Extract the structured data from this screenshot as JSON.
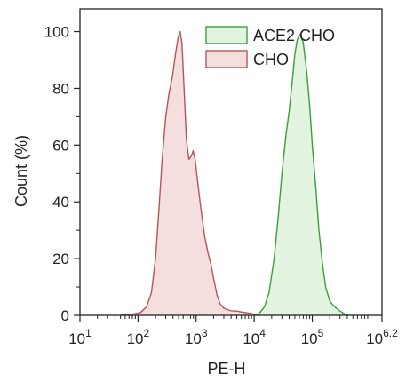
{
  "chart_data": {
    "type": "area",
    "title": "",
    "xlabel": "PE-H",
    "ylabel": "Count (%)",
    "x_scale": "log10",
    "xlim": [
      10,
      1584893
    ],
    "ylim": [
      0,
      108
    ],
    "x_ticks": [
      {
        "value": 10,
        "base": "10",
        "exp": "1"
      },
      {
        "value": 100,
        "base": "10",
        "exp": "2"
      },
      {
        "value": 1000,
        "base": "10",
        "exp": "3"
      },
      {
        "value": 10000,
        "base": "10",
        "exp": "4"
      },
      {
        "value": 100000,
        "base": "10",
        "exp": "5"
      },
      {
        "value": 1584893,
        "base": "10",
        "exp": "6.2"
      }
    ],
    "y_ticks": [
      {
        "value": 0,
        "label": "0"
      },
      {
        "value": 20,
        "label": "20"
      },
      {
        "value": 40,
        "label": "40"
      },
      {
        "value": 60,
        "label": "60"
      },
      {
        "value": 80,
        "label": "80"
      },
      {
        "value": 100,
        "label": "100"
      }
    ],
    "grid": false,
    "legend_position": "top-right",
    "series": [
      {
        "name": "CHO",
        "stroke": "#b5555a",
        "fill": "#f5dede",
        "points": [
          [
            50,
            0
          ],
          [
            80,
            0.4
          ],
          [
            110,
            1
          ],
          [
            140,
            3
          ],
          [
            170,
            8
          ],
          [
            200,
            20
          ],
          [
            230,
            38
          ],
          [
            260,
            55
          ],
          [
            300,
            70
          ],
          [
            340,
            78
          ],
          [
            390,
            84
          ],
          [
            440,
            92
          ],
          [
            490,
            98
          ],
          [
            530,
            100
          ],
          [
            570,
            96
          ],
          [
            620,
            80
          ],
          [
            680,
            62
          ],
          [
            750,
            55
          ],
          [
            820,
            56
          ],
          [
            890,
            58
          ],
          [
            960,
            55
          ],
          [
            1050,
            48
          ],
          [
            1200,
            38
          ],
          [
            1400,
            28
          ],
          [
            1600,
            22
          ],
          [
            1800,
            18
          ],
          [
            2000,
            13
          ],
          [
            2300,
            7
          ],
          [
            2600,
            4
          ],
          [
            3000,
            2.5
          ],
          [
            3500,
            2
          ],
          [
            4000,
            1.6
          ],
          [
            5000,
            1.5
          ],
          [
            6000,
            1.2
          ],
          [
            8000,
            0.8
          ],
          [
            10000,
            0.4
          ],
          [
            12000,
            0
          ]
        ]
      },
      {
        "name": "ACE2 CHO",
        "stroke": "#3a9e3a",
        "fill": "#e2f3df",
        "points": [
          [
            9500,
            0
          ],
          [
            12000,
            0.5
          ],
          [
            15000,
            3
          ],
          [
            18000,
            8
          ],
          [
            22000,
            20
          ],
          [
            26000,
            35
          ],
          [
            30000,
            50
          ],
          [
            35000,
            63
          ],
          [
            40000,
            72
          ],
          [
            45000,
            82
          ],
          [
            50000,
            92
          ],
          [
            55000,
            97
          ],
          [
            60000,
            99
          ],
          [
            63000,
            99
          ],
          [
            70000,
            96
          ],
          [
            80000,
            86
          ],
          [
            90000,
            74
          ],
          [
            100000,
            60
          ],
          [
            115000,
            45
          ],
          [
            130000,
            30
          ],
          [
            150000,
            18
          ],
          [
            170000,
            10
          ],
          [
            200000,
            5
          ],
          [
            230000,
            3.5
          ],
          [
            260000,
            2.5
          ],
          [
            300000,
            1.5
          ],
          [
            360000,
            0.5
          ],
          [
            420000,
            0
          ]
        ]
      }
    ]
  }
}
